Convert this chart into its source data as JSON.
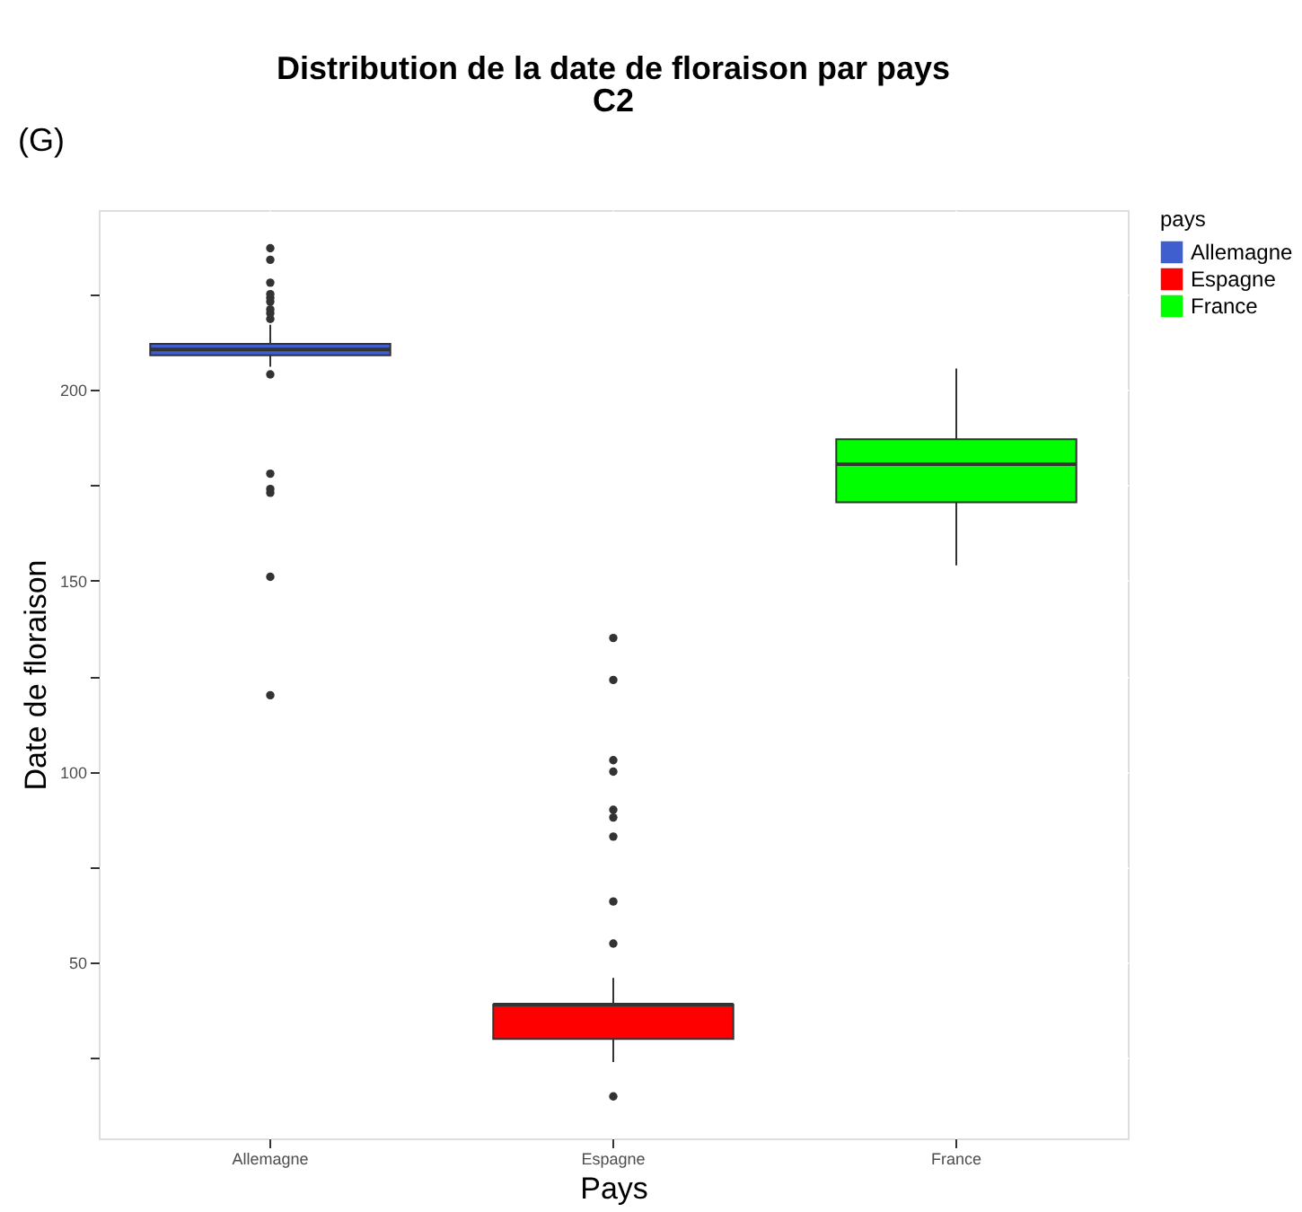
{
  "chart_data": {
    "type": "box",
    "title": "Distribution de la date de floraison par pays",
    "subtitle": "C2",
    "xlabel": "Pays",
    "ylabel": "Date de floraison",
    "legend_title": "pays",
    "legend": "right",
    "grid": true,
    "annotations": [
      "(G)"
    ],
    "categories": [
      "Allemagne",
      "Espagne",
      "France"
    ],
    "series": [
      {
        "name": "Allemagne",
        "color": "#3f5fcf",
        "boxes": [
          {
            "low": 206,
            "q1": 209,
            "median": 210.5,
            "q3": 212,
            "high": 217,
            "outliers": [
              237,
              234,
              228,
              225,
              224,
              223,
              221,
              220,
              218.5,
              204,
              178,
              174,
              173,
              151,
              120
            ]
          },
          null,
          null
        ]
      },
      {
        "name": "Espagne",
        "color": "#ff0000",
        "boxes": [
          null,
          {
            "low": 24,
            "q1": 30,
            "median": 39,
            "q3": 39,
            "high": 46,
            "outliers": [
              135,
              124,
              103,
              100,
              90,
              88,
              83,
              66,
              55,
              15
            ]
          },
          null
        ]
      },
      {
        "name": "France",
        "color": "#00ff00",
        "boxes": [
          null,
          null,
          {
            "low": 154,
            "q1": 170.5,
            "median": 180.5,
            "q3": 187,
            "high": 205.5
          }
        ]
      }
    ],
    "ylim": [
      4,
      247
    ],
    "yticks": [
      {
        "value": 25,
        "label": null
      },
      50,
      {
        "value": 75,
        "label": null
      },
      100,
      {
        "value": 125,
        "label": null
      },
      150,
      {
        "value": 175,
        "label": null
      },
      200,
      {
        "value": 225,
        "label": null
      }
    ]
  }
}
